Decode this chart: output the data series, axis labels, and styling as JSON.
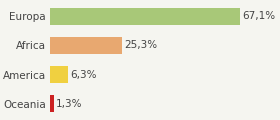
{
  "categories": [
    "Europa",
    "Africa",
    "America",
    "Oceania"
  ],
  "values": [
    67.1,
    25.3,
    6.3,
    1.3
  ],
  "labels": [
    "67,1%",
    "25,3%",
    "6,3%",
    "1,3%"
  ],
  "bar_colors": [
    "#a8c878",
    "#e8a870",
    "#f0d040",
    "#cc2222"
  ],
  "background_color": "#f5f5f0",
  "xlim": [
    0,
    80
  ],
  "label_fontsize": 7.5,
  "tick_fontsize": 7.5
}
